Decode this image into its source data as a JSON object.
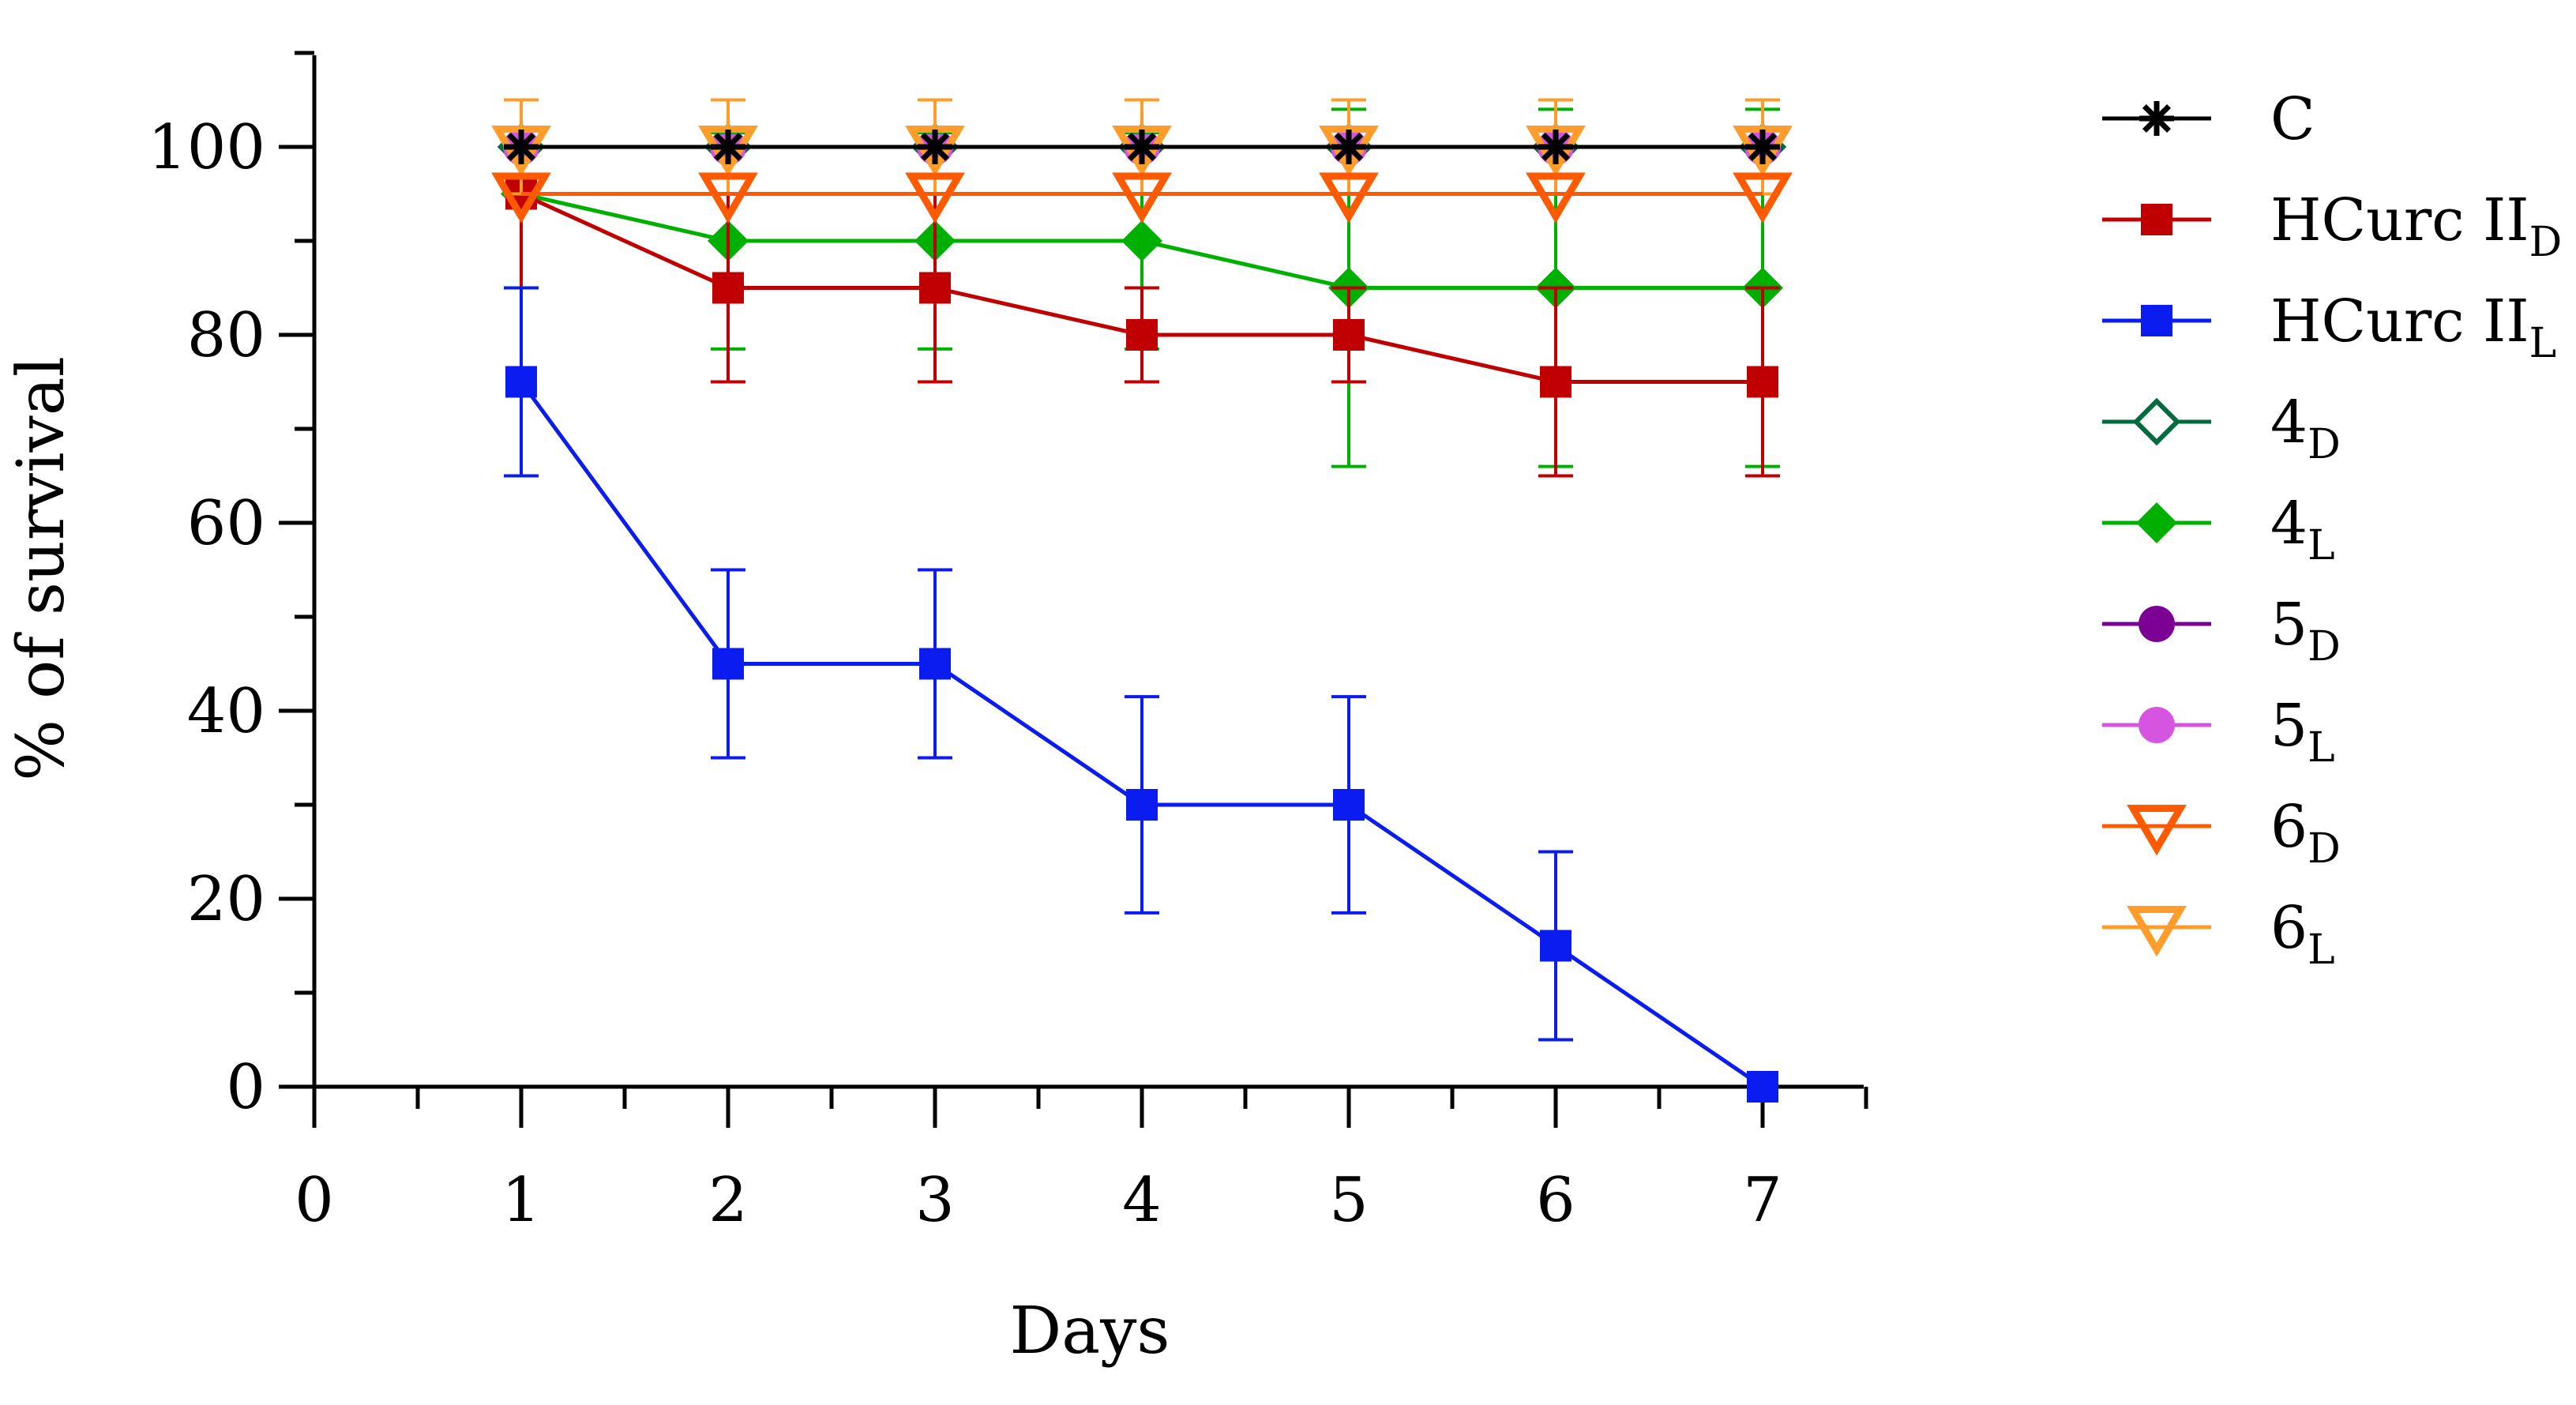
{
  "chart_data": {
    "type": "line",
    "title": "",
    "xlabel": "Days",
    "ylabel": "% of survival",
    "xlim": [
      0,
      7.5
    ],
    "ylim": [
      0,
      110
    ],
    "xticks": [
      0,
      1,
      2,
      3,
      4,
      5,
      6,
      7
    ],
    "xtick_labels": [
      "0",
      "1",
      "2",
      "3",
      "4",
      "5",
      "6",
      "7"
    ],
    "yticks": [
      0,
      20,
      40,
      60,
      80,
      100
    ],
    "ytick_labels": [
      "0",
      "20",
      "40",
      "60",
      "80",
      "100"
    ],
    "x": [
      1,
      2,
      3,
      4,
      5,
      6,
      7
    ],
    "legend_position": "right",
    "series": [
      {
        "name": "C",
        "base": "C",
        "sub": "",
        "color": "#000000",
        "marker": "star",
        "values": [
          100,
          100,
          100,
          100,
          100,
          100,
          100
        ],
        "errors": [
          0,
          0,
          0,
          0,
          0,
          0,
          0
        ]
      },
      {
        "name": "HCurc II_D",
        "base": "HCurc II",
        "sub": "D",
        "color": "#c00000",
        "marker": "square",
        "values": [
          95,
          85,
          85,
          80,
          80,
          75,
          75
        ],
        "errors": [
          10,
          10,
          10,
          5,
          5,
          10,
          10
        ]
      },
      {
        "name": "HCurc II_L",
        "base": "HCurc II",
        "sub": "L",
        "color": "#0a1cf0",
        "marker": "square",
        "values": [
          75,
          45,
          45,
          30,
          30,
          15,
          0
        ],
        "errors": [
          10,
          10,
          10,
          11.5,
          11.5,
          10,
          0
        ]
      },
      {
        "name": "4_D",
        "base": "4",
        "sub": "D",
        "color": "#006b3c",
        "marker": "diamond-open",
        "values": [
          100,
          100,
          100,
          100,
          100,
          100,
          100
        ],
        "errors": [
          5,
          5,
          5,
          5,
          5,
          5,
          5
        ]
      },
      {
        "name": "4_L",
        "base": "4",
        "sub": "L",
        "color": "#00b000",
        "marker": "diamond",
        "values": [
          95,
          90,
          90,
          90,
          85,
          85,
          85
        ],
        "errors": [
          10,
          11.5,
          11.5,
          11.5,
          19,
          19,
          19
        ]
      },
      {
        "name": "5_D",
        "base": "5",
        "sub": "D",
        "color": "#7b0094",
        "marker": "circle",
        "values": [
          100,
          100,
          100,
          100,
          100,
          100,
          100
        ],
        "errors": [
          5,
          5,
          5,
          5,
          5,
          5,
          5
        ]
      },
      {
        "name": "5_L",
        "base": "5",
        "sub": "L",
        "color": "#d655e0",
        "marker": "circle",
        "values": [
          100,
          100,
          100,
          100,
          100,
          100,
          100
        ],
        "errors": [
          5,
          5,
          5,
          5,
          5,
          5,
          5
        ]
      },
      {
        "name": "6_D",
        "base": "6",
        "sub": "D",
        "color": "#ff5a00",
        "marker": "triangle-down-open",
        "values": [
          95,
          95,
          95,
          95,
          95,
          95,
          95
        ],
        "errors": [
          0,
          0,
          0,
          0,
          0,
          0,
          0
        ]
      },
      {
        "name": "6_L",
        "base": "6",
        "sub": "L",
        "color": "#ff9c2a",
        "marker": "triangle-down-open",
        "values": [
          100,
          100,
          100,
          100,
          100,
          100,
          100
        ],
        "errors": [
          5,
          5,
          5,
          5,
          5,
          5,
          5
        ]
      }
    ]
  }
}
